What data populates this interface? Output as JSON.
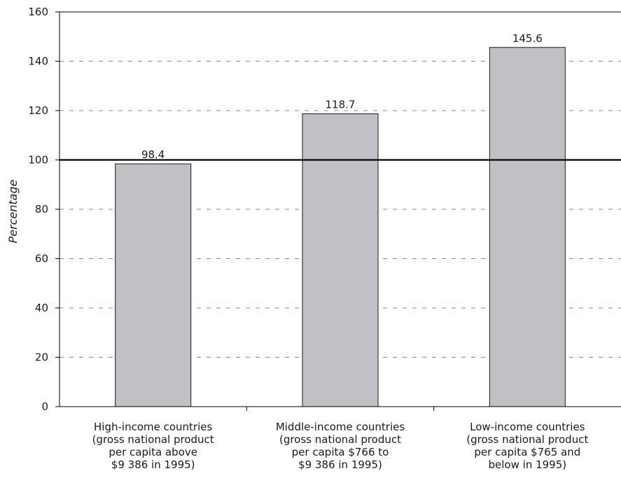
{
  "chart_data": {
    "type": "bar",
    "title": "",
    "xlabel": "",
    "ylabel": "Percentage",
    "ylim": [
      0,
      160
    ],
    "yticks": [
      0,
      20,
      40,
      60,
      80,
      100,
      120,
      140,
      160
    ],
    "grid": "horizontal dashed",
    "reference_line": 100,
    "bar_color": "#c0c1c5",
    "categories": [
      [
        "High-income countries",
        "(gross national product",
        "per capita above",
        "$9 386 in 1995)"
      ],
      [
        "Middle-income countries",
        "(gross national product",
        "per capita $766 to",
        "$9 386 in 1995)"
      ],
      [
        "Low-income countries",
        "(gross national product",
        "per capita $765 and",
        "below in 1995)"
      ]
    ],
    "values": [
      98.4,
      118.7,
      145.6
    ],
    "value_labels": [
      "98.4",
      "118.7",
      "145.6"
    ]
  }
}
